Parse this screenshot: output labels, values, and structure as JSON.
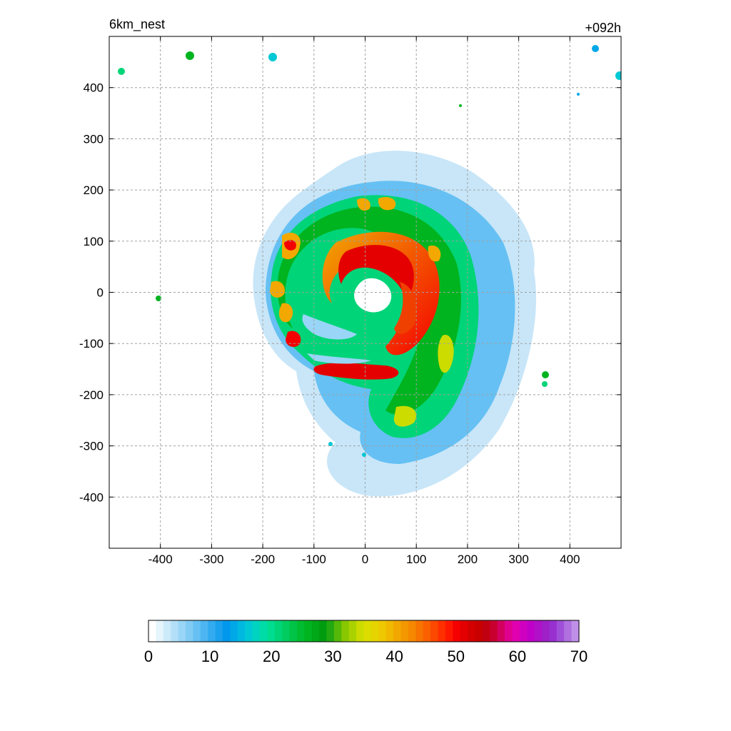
{
  "chart_data": {
    "type": "heatmap",
    "title_left": "6km_nest",
    "title_right": "+092h",
    "xlabel": "",
    "ylabel": "",
    "xlim": [
      -500,
      500
    ],
    "ylim": [
      -500,
      500
    ],
    "x_ticks": [
      -400,
      -300,
      -200,
      -100,
      0,
      100,
      200,
      300,
      400
    ],
    "y_ticks": [
      400,
      300,
      200,
      100,
      0,
      -100,
      -200,
      -300,
      -400
    ],
    "x_tick_labels": [
      "-400",
      "-300",
      "-200",
      "-100",
      "0",
      "100",
      "200",
      "300",
      "400"
    ],
    "y_tick_labels": [
      "400",
      "300",
      "200",
      "100",
      "0",
      "-100",
      "-200",
      "-300",
      "-400"
    ],
    "grid": true,
    "field_features": {
      "eye_center": [
        20,
        0
      ],
      "eye_radius_approx": 30,
      "max_value_region_approx": [
        [
          -50,
          30
        ],
        [
          70,
          -20
        ]
      ],
      "outer_extent_radius_approx": 290
    },
    "colorbar": {
      "orientation": "horizontal",
      "min": 0,
      "max": 70,
      "tick_values": [
        0,
        10,
        20,
        30,
        40,
        50,
        60,
        70
      ],
      "tick_labels": [
        "0",
        "10",
        "20",
        "30",
        "40",
        "50",
        "60",
        "70"
      ],
      "colors": [
        "#ffffff",
        "#e6f4fc",
        "#cceafa",
        "#b3e0f8",
        "#99d5f6",
        "#80cbf4",
        "#66c0f3",
        "#4db6f2",
        "#33abf0",
        "#1aa1ee",
        "#0097ec",
        "#00a8e8",
        "#00b8e0",
        "#00c8d4",
        "#00d4c0",
        "#00dca8",
        "#00dc90",
        "#00d478",
        "#00cc60",
        "#00c448",
        "#00bc30",
        "#00b420",
        "#00a818",
        "#009c10",
        "#22a810",
        "#55b808",
        "#88c800",
        "#aad200",
        "#ccdc00",
        "#dddc00",
        "#e6d400",
        "#eec800",
        "#f0b800",
        "#f2a800",
        "#f49800",
        "#f68800",
        "#f87400",
        "#fa6000",
        "#fc4800",
        "#fe3000",
        "#ff1800",
        "#f40000",
        "#e40000",
        "#d40000",
        "#c80000",
        "#c00010",
        "#c80030",
        "#d40060",
        "#e00090",
        "#e000b0",
        "#d000c0",
        "#c000c8",
        "#b010c8",
        "#a020c8",
        "#9830d0",
        "#a050d8",
        "#b070e0",
        "#c090e8"
      ]
    }
  }
}
